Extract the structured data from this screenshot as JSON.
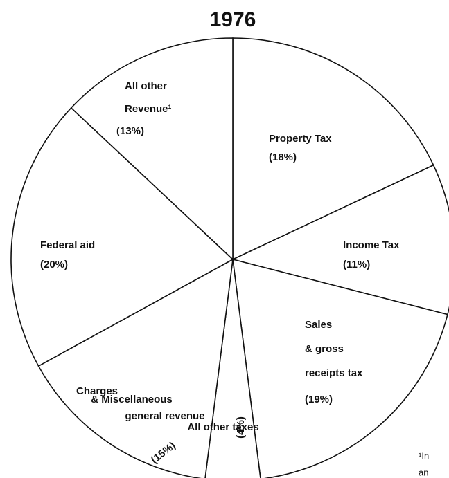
{
  "chart_data": {
    "type": "pie",
    "title": "1976",
    "categories": [
      "Property Tax",
      "Income Tax",
      "Sales & gross receipts tax",
      "All other taxes",
      "Charges & Miscellaneous general revenue",
      "Federal aid",
      "All other Revenue¹"
    ],
    "values": [
      18,
      11,
      19,
      4,
      15,
      20,
      13
    ],
    "value_labels": [
      "(18%)",
      "(11%)",
      "(19%)",
      "(4%)",
      "(15%)",
      "(20%)",
      "(13%)"
    ],
    "color": "#ffffff",
    "footnote": [
      "¹In",
      "an"
    ]
  }
}
